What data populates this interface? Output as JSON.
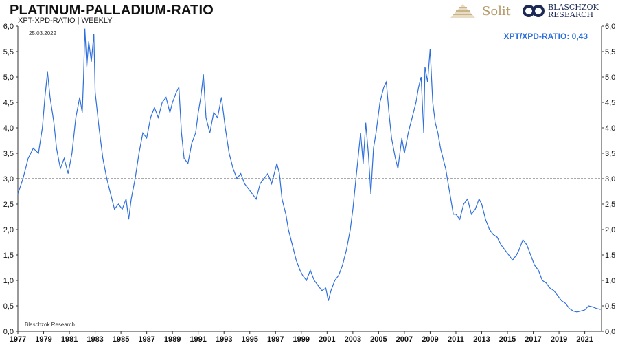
{
  "header": {
    "title": "PLATINUM-PALLADIUM-RATIO",
    "subtitle": "XPT-XPD-RATIO | WEEKLY",
    "date": "25.03.2022",
    "readout": "XPT/XPD-RATIO: 0,43",
    "source": "Blaschzok Research",
    "logo_solit": "Solit",
    "logo_blaschzok_line1": "BLASCHZOK",
    "logo_blaschzok_line2": "RESEARCH"
  },
  "colors": {
    "line": "#2e6fdc",
    "reference": "#555555",
    "axis": "#333333",
    "accent": "#2e6fdc"
  },
  "chart_data": {
    "type": "line",
    "title": "PLATINUM-PALLADIUM-RATIO",
    "subtitle": "XPT-XPD-RATIO | WEEKLY",
    "xlim": [
      1977,
      2022.3
    ],
    "ylim": [
      0,
      6
    ],
    "y_ticks": [
      "0,0",
      "0,5",
      "1,0",
      "1,5",
      "2,0",
      "2,5",
      "3,0",
      "3,5",
      "4,0",
      "4,5",
      "5,0",
      "5,5",
      "6,0"
    ],
    "x_ticks": [
      "1977",
      "1979",
      "1981",
      "1983",
      "1985",
      "1987",
      "1989",
      "1991",
      "1993",
      "1995",
      "1997",
      "1999",
      "2001",
      "2003",
      "2005",
      "2007",
      "2009",
      "2011",
      "2013",
      "2015",
      "2017",
      "2019",
      "2021"
    ],
    "reference_line": 3.0,
    "grid": false,
    "series": [
      {
        "values": [
          [
            1977.0,
            2.7
          ],
          [
            1977.4,
            3.0
          ],
          [
            1977.8,
            3.4
          ],
          [
            1978.2,
            3.6
          ],
          [
            1978.6,
            3.5
          ],
          [
            1978.9,
            4.0
          ],
          [
            1979.1,
            4.6
          ],
          [
            1979.3,
            5.1
          ],
          [
            1979.5,
            4.6
          ],
          [
            1979.8,
            4.1
          ],
          [
            1980.0,
            3.6
          ],
          [
            1980.3,
            3.2
          ],
          [
            1980.6,
            3.4
          ],
          [
            1980.9,
            3.1
          ],
          [
            1981.2,
            3.5
          ],
          [
            1981.5,
            4.2
          ],
          [
            1981.8,
            4.6
          ],
          [
            1982.0,
            4.3
          ],
          [
            1982.1,
            5.0
          ],
          [
            1982.2,
            5.95
          ],
          [
            1982.35,
            5.2
          ],
          [
            1982.5,
            5.7
          ],
          [
            1982.7,
            5.3
          ],
          [
            1982.9,
            5.85
          ],
          [
            1983.0,
            4.7
          ],
          [
            1983.3,
            4.0
          ],
          [
            1983.6,
            3.4
          ],
          [
            1983.9,
            3.0
          ],
          [
            1984.2,
            2.7
          ],
          [
            1984.5,
            2.4
          ],
          [
            1984.8,
            2.5
          ],
          [
            1985.1,
            2.4
          ],
          [
            1985.4,
            2.6
          ],
          [
            1985.6,
            2.2
          ],
          [
            1985.8,
            2.6
          ],
          [
            1986.1,
            3.0
          ],
          [
            1986.4,
            3.5
          ],
          [
            1986.7,
            3.9
          ],
          [
            1987.0,
            3.8
          ],
          [
            1987.3,
            4.2
          ],
          [
            1987.6,
            4.4
          ],
          [
            1987.9,
            4.2
          ],
          [
            1988.2,
            4.5
          ],
          [
            1988.5,
            4.6
          ],
          [
            1988.8,
            4.3
          ],
          [
            1989.0,
            4.5
          ],
          [
            1989.3,
            4.7
          ],
          [
            1989.5,
            4.8
          ],
          [
            1989.7,
            3.9
          ],
          [
            1989.9,
            3.4
          ],
          [
            1990.2,
            3.3
          ],
          [
            1990.5,
            3.7
          ],
          [
            1990.8,
            3.9
          ],
          [
            1991.0,
            4.3
          ],
          [
            1991.2,
            4.6
          ],
          [
            1991.4,
            5.05
          ],
          [
            1991.6,
            4.2
          ],
          [
            1991.9,
            3.9
          ],
          [
            1992.2,
            4.3
          ],
          [
            1992.5,
            4.2
          ],
          [
            1992.8,
            4.6
          ],
          [
            1993.1,
            4.0
          ],
          [
            1993.4,
            3.5
          ],
          [
            1993.7,
            3.2
          ],
          [
            1994.0,
            3.0
          ],
          [
            1994.3,
            3.1
          ],
          [
            1994.6,
            2.9
          ],
          [
            1994.9,
            2.8
          ],
          [
            1995.2,
            2.7
          ],
          [
            1995.5,
            2.6
          ],
          [
            1995.8,
            2.9
          ],
          [
            1996.1,
            3.0
          ],
          [
            1996.4,
            3.1
          ],
          [
            1996.7,
            2.9
          ],
          [
            1996.9,
            3.1
          ],
          [
            1997.1,
            3.3
          ],
          [
            1997.3,
            3.1
          ],
          [
            1997.5,
            2.6
          ],
          [
            1997.8,
            2.3
          ],
          [
            1998.0,
            2.0
          ],
          [
            1998.3,
            1.7
          ],
          [
            1998.6,
            1.4
          ],
          [
            1998.9,
            1.2
          ],
          [
            1999.1,
            1.1
          ],
          [
            1999.4,
            1.0
          ],
          [
            1999.7,
            1.2
          ],
          [
            2000.0,
            1.0
          ],
          [
            2000.3,
            0.9
          ],
          [
            2000.6,
            0.8
          ],
          [
            2000.9,
            0.85
          ],
          [
            2001.1,
            0.6
          ],
          [
            2001.3,
            0.8
          ],
          [
            2001.6,
            1.0
          ],
          [
            2001.9,
            1.1
          ],
          [
            2002.2,
            1.3
          ],
          [
            2002.5,
            1.6
          ],
          [
            2002.8,
            2.0
          ],
          [
            2003.0,
            2.4
          ],
          [
            2003.2,
            2.9
          ],
          [
            2003.4,
            3.4
          ],
          [
            2003.6,
            3.9
          ],
          [
            2003.8,
            3.3
          ],
          [
            2004.0,
            4.1
          ],
          [
            2004.2,
            3.5
          ],
          [
            2004.4,
            2.7
          ],
          [
            2004.6,
            3.6
          ],
          [
            2004.8,
            3.9
          ],
          [
            2005.1,
            4.5
          ],
          [
            2005.4,
            4.8
          ],
          [
            2005.6,
            4.9
          ],
          [
            2005.8,
            4.3
          ],
          [
            2006.0,
            3.8
          ],
          [
            2006.3,
            3.4
          ],
          [
            2006.5,
            3.2
          ],
          [
            2006.8,
            3.8
          ],
          [
            2007.0,
            3.5
          ],
          [
            2007.3,
            3.9
          ],
          [
            2007.6,
            4.2
          ],
          [
            2007.9,
            4.5
          ],
          [
            2008.1,
            4.8
          ],
          [
            2008.3,
            5.0
          ],
          [
            2008.5,
            3.9
          ],
          [
            2008.6,
            5.2
          ],
          [
            2008.8,
            4.9
          ],
          [
            2009.0,
            5.55
          ],
          [
            2009.2,
            4.5
          ],
          [
            2009.4,
            4.1
          ],
          [
            2009.6,
            3.9
          ],
          [
            2009.8,
            3.6
          ],
          [
            2010.0,
            3.4
          ],
          [
            2010.2,
            3.2
          ],
          [
            2010.4,
            2.9
          ],
          [
            2010.6,
            2.6
          ],
          [
            2010.8,
            2.3
          ],
          [
            2011.0,
            2.3
          ],
          [
            2011.3,
            2.2
          ],
          [
            2011.6,
            2.5
          ],
          [
            2011.9,
            2.6
          ],
          [
            2012.2,
            2.3
          ],
          [
            2012.5,
            2.4
          ],
          [
            2012.8,
            2.6
          ],
          [
            2013.0,
            2.5
          ],
          [
            2013.3,
            2.2
          ],
          [
            2013.6,
            2.0
          ],
          [
            2013.9,
            1.9
          ],
          [
            2014.2,
            1.85
          ],
          [
            2014.5,
            1.7
          ],
          [
            2014.8,
            1.6
          ],
          [
            2015.1,
            1.5
          ],
          [
            2015.4,
            1.4
          ],
          [
            2015.7,
            1.5
          ],
          [
            2015.9,
            1.6
          ],
          [
            2016.2,
            1.8
          ],
          [
            2016.5,
            1.7
          ],
          [
            2016.8,
            1.5
          ],
          [
            2017.1,
            1.3
          ],
          [
            2017.4,
            1.2
          ],
          [
            2017.7,
            1.0
          ],
          [
            2018.0,
            0.95
          ],
          [
            2018.3,
            0.85
          ],
          [
            2018.6,
            0.8
          ],
          [
            2018.9,
            0.7
          ],
          [
            2019.2,
            0.6
          ],
          [
            2019.5,
            0.55
          ],
          [
            2019.8,
            0.45
          ],
          [
            2020.1,
            0.4
          ],
          [
            2020.4,
            0.38
          ],
          [
            2020.7,
            0.4
          ],
          [
            2021.0,
            0.42
          ],
          [
            2021.3,
            0.5
          ],
          [
            2021.6,
            0.48
          ],
          [
            2021.9,
            0.45
          ],
          [
            2022.23,
            0.43
          ]
        ]
      }
    ]
  }
}
